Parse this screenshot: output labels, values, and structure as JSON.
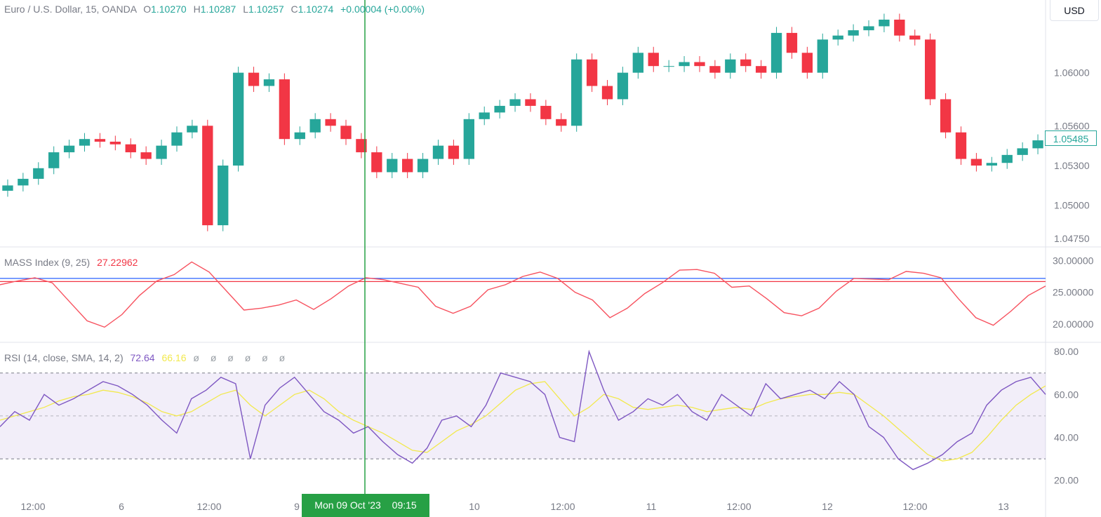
{
  "symbol": {
    "name": "Euro / U.S. Dollar, 15, OANDA",
    "o_label": "O",
    "o_value": "1.10270",
    "h_label": "H",
    "h_value": "1.10287",
    "l_label": "L",
    "l_value": "1.10257",
    "c_label": "C",
    "c_value": "1.10274",
    "change": "+0.00004 (+0.00%)"
  },
  "currency": "USD",
  "last_price": "1.05485",
  "mass_index": {
    "name": "MASS Index (9, 25)",
    "value": "27.22962"
  },
  "rsi": {
    "name": "RSI (14, close, SMA, 14, 2)",
    "value": "72.64",
    "ma_value": "66.16",
    "empty_values": "ø ø ø ø ø ø"
  },
  "crosshair": {
    "date": "Mon 09 Oct '23",
    "time": "09:15"
  },
  "colors": {
    "up": "#26a69a",
    "down": "#f23645",
    "mass": "#f7525f",
    "rsi": "#7e57c2",
    "rsi_ma": "#f2e94e",
    "crosshair": "#27a045",
    "level_blue": "#2962ff",
    "level_red": "#f23645"
  },
  "chart_data": [
    {
      "type": "line",
      "title": "Euro / U.S. Dollar, 15, OANDA",
      "series": [
        {
          "name": "Close",
          "values": [
            1.0515,
            1.052,
            1.0528,
            1.054,
            1.0545,
            1.055,
            1.0548,
            1.0546,
            1.054,
            1.0535,
            1.0545,
            1.0555,
            1.056,
            1.0485,
            1.053,
            1.06,
            1.059,
            1.0595,
            1.055,
            1.0555,
            1.0565,
            1.056,
            1.055,
            1.054,
            1.0525,
            1.0535,
            1.0525,
            1.0535,
            1.0545,
            1.0535,
            1.0565,
            1.057,
            1.0575,
            1.058,
            1.0575,
            1.0565,
            1.056,
            1.061,
            1.059,
            1.058,
            1.06,
            1.0615,
            1.0605,
            1.0605,
            1.0608,
            1.0605,
            1.06,
            1.061,
            1.0605,
            1.06,
            1.063,
            1.0615,
            1.06,
            1.0625,
            1.0628,
            1.0632,
            1.0635,
            1.064,
            1.0628,
            1.0625,
            1.058,
            1.0555,
            1.0535,
            1.053,
            1.0532,
            1.0538,
            1.0543,
            1.0549
          ]
        }
      ],
      "ylim": [
        1.0475,
        1.064
      ],
      "y_ticks": [
        "1.06000",
        "1.05600",
        "1.05300",
        "1.05000",
        "1.04750"
      ],
      "x_ticks": [
        "12:00",
        "6",
        "12:00",
        "9",
        "10",
        "12:00",
        "11",
        "12:00",
        "12",
        "12:00",
        "13"
      ]
    },
    {
      "type": "line",
      "title": "MASS Index (9, 25)",
      "series": [
        {
          "name": "MASS",
          "values": [
            26.2,
            26.8,
            27.3,
            26.5,
            23.5,
            20.5,
            19.5,
            21.5,
            24.5,
            26.8,
            27.8,
            29.8,
            28.2,
            25.2,
            22.2,
            22.5,
            23.0,
            23.8,
            22.3,
            24.0,
            26.0,
            27.3,
            27.0,
            26.4,
            25.8,
            22.8,
            21.7,
            22.8,
            25.4,
            26.2,
            27.5,
            28.2,
            27.2,
            25.0,
            23.8,
            21.0,
            22.5,
            24.8,
            26.5,
            28.5,
            28.6,
            28.0,
            25.8,
            26.0,
            24.0,
            21.8,
            21.3,
            22.5,
            25.2,
            27.2,
            27.1,
            27.0,
            28.3,
            28.0,
            27.3,
            24.0,
            21.0,
            19.8,
            22.0,
            24.5,
            26.0
          ]
        }
      ],
      "ylim": [
        18.0,
        31.5
      ],
      "y_ticks": [
        "30.00000",
        "25.00000",
        "20.00000"
      ],
      "levels": [
        27.2,
        26.7
      ]
    },
    {
      "type": "line",
      "title": "RSI (14, close, SMA, 14, 2)",
      "series": [
        {
          "name": "RSI",
          "values": [
            45,
            52,
            48,
            60,
            55,
            58,
            62,
            66,
            64,
            60,
            55,
            48,
            42,
            58,
            62,
            68,
            65,
            30,
            55,
            63,
            68,
            60,
            52,
            48,
            42,
            45,
            38,
            32,
            28,
            35,
            48,
            50,
            45,
            55,
            70,
            68,
            66,
            60,
            40,
            38,
            80,
            62,
            48,
            52,
            58,
            55,
            60,
            52,
            48,
            60,
            55,
            50,
            65,
            58,
            60,
            62,
            58,
            66,
            60,
            45,
            40,
            30,
            25,
            28,
            32,
            38,
            42,
            55,
            62,
            66,
            68,
            60
          ]
        },
        {
          "name": "RSI MA",
          "values": [
            48,
            50,
            52,
            54,
            57,
            59,
            60,
            62,
            61,
            59,
            56,
            52,
            50,
            52,
            56,
            60,
            62,
            55,
            50,
            55,
            60,
            62,
            58,
            52,
            48,
            45,
            42,
            38,
            34,
            33,
            38,
            43,
            46,
            50,
            56,
            62,
            65,
            66,
            58,
            50,
            54,
            60,
            58,
            54,
            53,
            54,
            55,
            54,
            52,
            53,
            54,
            53,
            56,
            58,
            59,
            60,
            60,
            61,
            60,
            55,
            50,
            44,
            38,
            32,
            29,
            30,
            33,
            40,
            48,
            55,
            60,
            64
          ]
        }
      ],
      "ylim": [
        15,
        82
      ],
      "y_ticks": [
        "80.00",
        "60.00",
        "40.00",
        "20.00"
      ],
      "bands": [
        70,
        50,
        30
      ]
    }
  ]
}
